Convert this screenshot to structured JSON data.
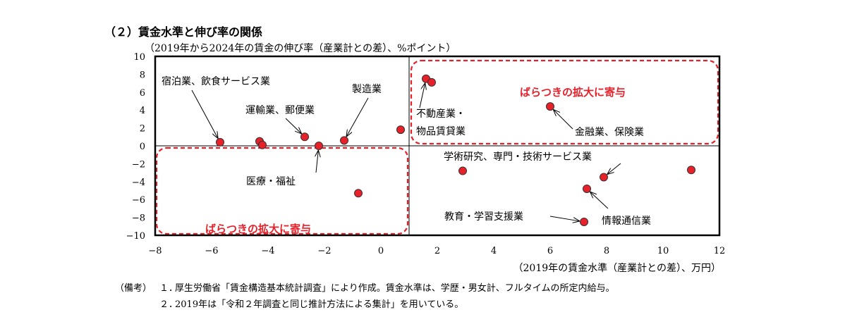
{
  "heading": "（２）賃金水準と伸び率の関係",
  "chart_data": {
    "type": "scatter",
    "title": "",
    "ylabel": "（2019年から2024年の賃金の伸び率（産業計との差）、%ポイント）",
    "xlabel": "（2019年の賃金水準（産業計との差）、万円）",
    "xlim": [
      -8,
      12
    ],
    "ylim": [
      -10,
      10
    ],
    "xticks": [
      -8,
      -6,
      -4,
      -2,
      0,
      2,
      4,
      6,
      8,
      10,
      12
    ],
    "yticks": [
      10,
      8,
      6,
      4,
      2,
      0,
      -2,
      -4,
      -6,
      -8,
      -10
    ],
    "grid": false,
    "marker_color": "#e8202a",
    "points": [
      {
        "x": -5.7,
        "y": 0.4
      },
      {
        "x": -4.3,
        "y": 0.5
      },
      {
        "x": -4.2,
        "y": 0.1
      },
      {
        "x": -2.7,
        "y": 1.0
      },
      {
        "x": -2.2,
        "y": 0.0
      },
      {
        "x": -1.3,
        "y": 0.6
      },
      {
        "x": -0.8,
        "y": -5.3
      },
      {
        "x": 0.7,
        "y": 1.8
      },
      {
        "x": 1.6,
        "y": 7.5
      },
      {
        "x": 1.8,
        "y": 7.1
      },
      {
        "x": 2.9,
        "y": -2.8
      },
      {
        "x": 6.0,
        "y": 4.4
      },
      {
        "x": 7.3,
        "y": -4.8
      },
      {
        "x": 7.2,
        "y": -8.5
      },
      {
        "x": 7.9,
        "y": -3.5
      },
      {
        "x": 11.0,
        "y": -2.7
      }
    ],
    "annotations": [
      {
        "text": "宿泊業、飲食サービス業",
        "target": [
          -5.7,
          0.4
        ]
      },
      {
        "text": "製造業",
        "target": [
          -1.3,
          0.6
        ]
      },
      {
        "text": "運輸業、郵便業",
        "target": [
          -2.7,
          1.0
        ]
      },
      {
        "text": "医療・福祉",
        "target": [
          -2.2,
          0.0
        ]
      },
      {
        "text": "不動産業・",
        "target": [
          1.6,
          7.5
        ]
      },
      {
        "text": "物品賃貸業",
        "target": null
      },
      {
        "text": "金融業、保険業",
        "target": [
          6.0,
          4.4
        ]
      },
      {
        "text": "学術研究、専門・技術サービス業",
        "target": [
          7.9,
          -3.5
        ]
      },
      {
        "text": "情報通信業",
        "target": [
          7.3,
          -4.8
        ]
      },
      {
        "text": "教育・学習支援業",
        "target": [
          7.2,
          -8.5
        ]
      }
    ],
    "highlight_regions": [
      {
        "label": "ばらつきの拡大に寄与",
        "xrange": [
          1.0,
          12.0
        ],
        "yrange": [
          0.4,
          10.0
        ]
      },
      {
        "label": "ばらつきの拡大に寄与",
        "xrange": [
          -8.0,
          1.0
        ],
        "yrange": [
          -10.0,
          0.0
        ]
      }
    ]
  },
  "notes": {
    "label": "（備考）",
    "items": [
      {
        "num": "１．",
        "text": "厚生労働省「賃金構造基本統計調査」により作成。賃金水準は、学歴・男女計、フルタイムの所定内給与。"
      },
      {
        "num": "２．",
        "text": "2019年は「令和２年調査と同じ推計方法による集計」を用いている。"
      }
    ]
  }
}
